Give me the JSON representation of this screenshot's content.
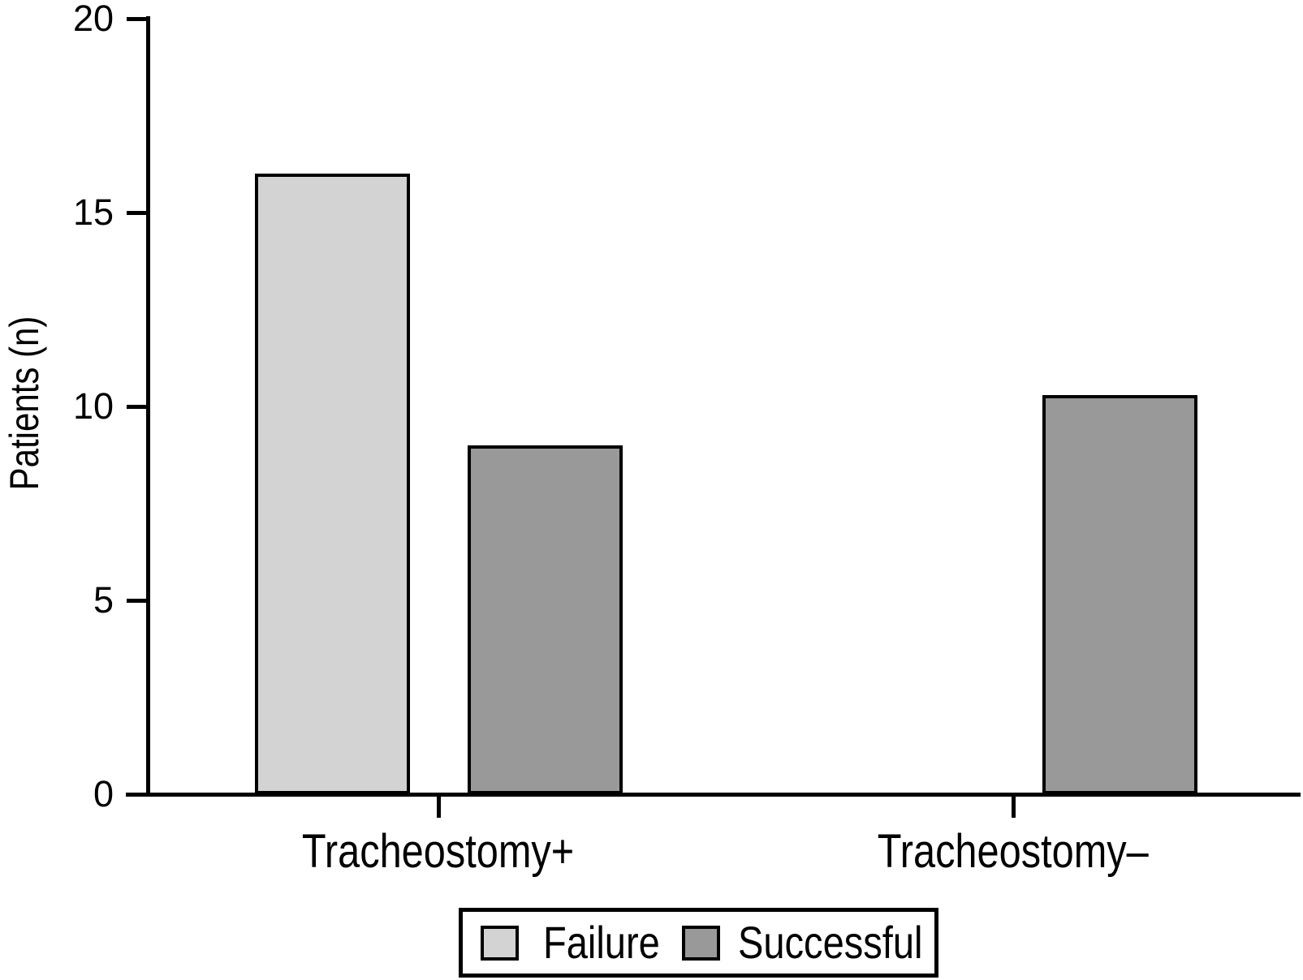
{
  "chart_data": {
    "type": "bar",
    "title": "",
    "categories": [
      "Tracheostomy+",
      "Tracheostomy–"
    ],
    "series": [
      {
        "name": "Failure",
        "color": "#d3d3d3",
        "values": [
          16,
          0
        ]
      },
      {
        "name": "Successful",
        "color": "#999999",
        "values": [
          9,
          10.3
        ]
      }
    ],
    "xlabel": "",
    "ylabel": "Patients (n)",
    "ylim": [
      0,
      20
    ],
    "yticks": [
      0,
      5,
      10,
      15,
      20
    ],
    "grid": false,
    "background": "#ffffff",
    "axis_color": "#000000",
    "bar_border_color": "#000000",
    "legend": {
      "position": "bottom",
      "bordered": true
    }
  }
}
